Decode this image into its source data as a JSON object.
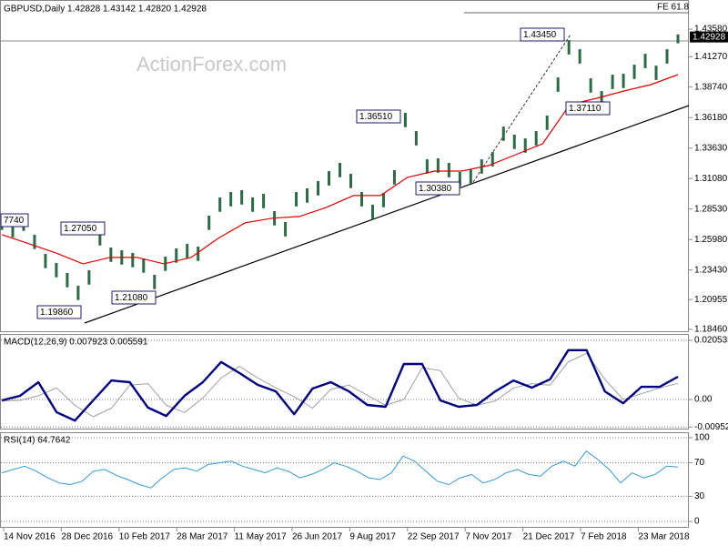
{
  "x_axis": {
    "labels": [
      "14 Nov 2016",
      "28 Dec 2016",
      "10 Feb 2017",
      "28 Mar 2017",
      "11 May 2017",
      "26 Jun 2017",
      "9 Aug 2017",
      "22 Sep 2017",
      "7 Nov 2017",
      "21 Dec 2017",
      "7 Feb 2018",
      "23 Mar 2018"
    ]
  },
  "chart_data": [
    {
      "type": "hilo",
      "title": "GBPUSD,Daily  1.42828 1.43142 1.42820 1.42928",
      "watermark": "ActionForex.com",
      "color": "#2a6a45",
      "high": [
        1.2798,
        1.2737,
        1.279,
        1.2638,
        1.2478,
        1.2402,
        1.2318,
        1.2212,
        1.2341,
        1.2668,
        1.2531,
        1.2508,
        1.2486,
        1.244,
        1.2303,
        1.2455,
        1.2524,
        1.2562,
        1.2539,
        1.2798,
        1.295,
        1.2995,
        1.3011,
        1.295,
        1.298,
        1.2836,
        1.2744,
        1.2995,
        1.3026,
        1.3087,
        1.317,
        1.3239,
        1.3148,
        1.2995,
        1.2889,
        1.2988,
        1.3178,
        1.3658,
        1.3505,
        1.3269,
        1.3277,
        1.3239,
        1.3163,
        1.3186,
        1.3269,
        1.333,
        1.3543,
        1.3475,
        1.3444,
        1.3505,
        1.3635,
        1.3954,
        1.4266,
        1.419,
        1.3947,
        1.384,
        1.3977,
        1.3985,
        1.4061,
        1.4152,
        1.4053,
        1.419,
        1.4314
      ],
      "low": [
        1.2678,
        1.2617,
        1.267,
        1.2518,
        1.2358,
        1.2282,
        1.2198,
        1.2092,
        1.2221,
        1.2548,
        1.2411,
        1.2388,
        1.2366,
        1.232,
        1.2183,
        1.2335,
        1.2404,
        1.2442,
        1.2419,
        1.2678,
        1.283,
        1.2875,
        1.2891,
        1.283,
        1.286,
        1.2716,
        1.2624,
        1.2875,
        1.2906,
        1.2967,
        1.305,
        1.3119,
        1.3028,
        1.2875,
        1.2769,
        1.2868,
        1.3058,
        1.3538,
        1.3385,
        1.3149,
        1.3157,
        1.3119,
        1.3043,
        1.3066,
        1.3149,
        1.321,
        1.3423,
        1.3355,
        1.3324,
        1.3385,
        1.3515,
        1.3834,
        1.4146,
        1.407,
        1.3827,
        1.372,
        1.3857,
        1.3865,
        1.3941,
        1.4032,
        1.3933,
        1.407,
        1.424
      ],
      "ma": {
        "color": "#e00000",
        "values": [
          1.2639,
          1.2563,
          1.2486,
          1.2395,
          1.2448,
          1.2448,
          1.2395,
          1.2448,
          1.2608,
          1.2738,
          1.2776,
          1.2791,
          1.2867,
          1.2966,
          1.2966,
          1.3118,
          1.3171,
          1.3171,
          1.3217,
          1.3308,
          1.34,
          1.3727,
          1.378,
          1.3841,
          1.3894,
          1.3978
        ]
      },
      "ylim": [
        1.1823,
        1.4602
      ],
      "yticks": [
        {
          "value": 1.4358,
          "label": "1.43580"
        },
        {
          "value": 1.4127,
          "label": "1.41270"
        },
        {
          "value": 1.3874,
          "label": "1.38740"
        },
        {
          "value": 1.3618,
          "label": "1.36180"
        },
        {
          "value": 1.3363,
          "label": "1.33630"
        },
        {
          "value": 1.3108,
          "label": "1.31080"
        },
        {
          "value": 1.2853,
          "label": "1.28530"
        },
        {
          "value": 1.2598,
          "label": "1.25980"
        },
        {
          "value": 1.2343,
          "label": "1.23430"
        },
        1.20955,
        {
          "value": 1.1846,
          "label": "1.18460"
        }
      ],
      "annotations": [
        "7740",
        "1.27050",
        "1.19860",
        "1.21080",
        "1.36510",
        "1.30380",
        "1.43450",
        "1.37110"
      ],
      "fe_label": "FE 61.8",
      "last_price": {
        "value": 1.42928,
        "label": "1.42928"
      }
    },
    {
      "type": "macd",
      "title": "MACD(12,26,9) 0.007923 0.005591",
      "macd": {
        "color": "#000080",
        "values": [
          -0.0003,
          0.0013,
          0.006,
          -0.0044,
          -0.0073,
          -0.0003,
          0.0066,
          0.006,
          -0.0028,
          -0.0057,
          0.0013,
          0.006,
          0.013,
          0.0092,
          0.0051,
          0.0028,
          -0.0051,
          0.0038,
          0.006,
          0.0028,
          -0.0019,
          -0.0025,
          0.0123,
          0.0123,
          -0.0003,
          -0.0025,
          -0.0019,
          0.0028,
          0.0066,
          0.0041,
          0.007,
          0.0171,
          0.0171,
          0.0028,
          -0.0013,
          0.0044,
          0.0044,
          0.0079
        ]
      },
      "signal": {
        "color": "#a0a0a0",
        "values": [
          -0.0005,
          -0.0003,
          0.0013,
          0.004,
          -0.002,
          -0.006,
          -0.003,
          0.005,
          0.0055,
          -0.002,
          -0.0045,
          0.0005,
          0.0075,
          0.0115,
          0.0075,
          0.004,
          0.001,
          -0.003,
          0.0035,
          0.005,
          0.0015,
          -0.002,
          0.0,
          0.011,
          0.01,
          0.0005,
          -0.002,
          -0.0005,
          0.004,
          0.0055,
          0.005,
          0.013,
          0.016,
          0.007,
          0.0,
          0.002,
          0.004,
          0.0056
        ]
      },
      "ylim": [
        -0.0104,
        0.0224
      ],
      "yticks": [
        0.020535,
        {
          "value": 0,
          "label": "0.00"
        },
        -0.009529
      ],
      "grid": true
    },
    {
      "type": "rsi",
      "title": "RSI(14) 64.7642",
      "color": "#3399dd",
      "values": [
        58,
        62,
        66,
        60,
        52,
        46,
        44,
        48,
        60,
        62,
        55,
        50,
        44,
        40,
        52,
        62,
        64,
        60,
        68,
        70,
        72,
        66,
        62,
        58,
        64,
        60,
        52,
        56,
        62,
        70,
        66,
        60,
        52,
        50,
        58,
        78,
        72,
        60,
        48,
        44,
        52,
        56,
        46,
        50,
        58,
        62,
        56,
        54,
        66,
        72,
        66,
        84,
        74,
        62,
        46,
        58,
        52,
        56,
        66,
        65
      ],
      "ylim": [
        -7.6,
        105.4
      ],
      "yticks": [
        100,
        70,
        30,
        0
      ],
      "grid": true
    }
  ]
}
